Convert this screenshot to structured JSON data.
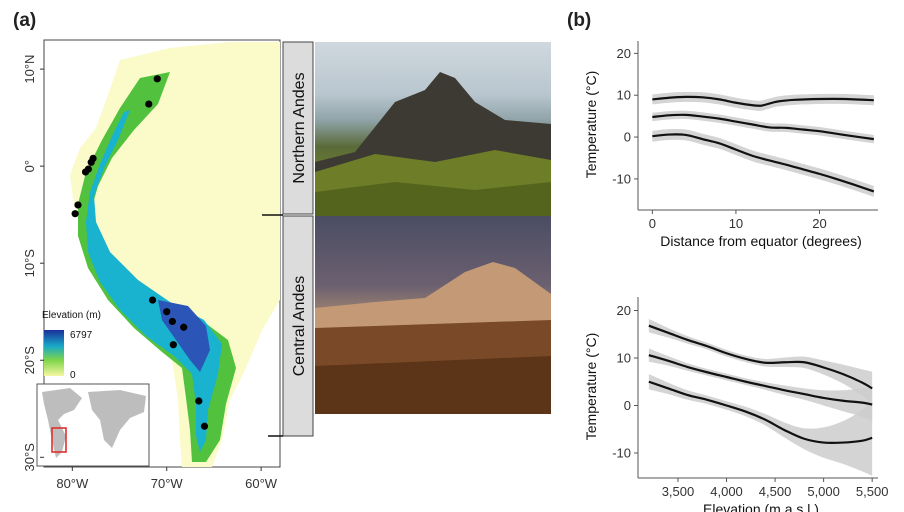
{
  "panel_a": {
    "label": "(a)",
    "map": {
      "lat_ticks": [
        "10°N",
        "0°",
        "10°S",
        "20°S",
        "30°S"
      ],
      "lon_ticks": [
        "80°W",
        "70°W",
        "60°W"
      ],
      "legend_title": "Elevation (m)",
      "legend_max": "6797",
      "legend_min": "0",
      "colors": {
        "low": "#f5f7b8",
        "mid": "#22b84a",
        "high": "#1b3fa3",
        "lowland": "#fbfbd0",
        "inset_box": "#e03030"
      },
      "sites": [
        {
          "lon": -71.0,
          "lat": 9.0
        },
        {
          "lon": -71.9,
          "lat": 6.4
        },
        {
          "lon": -77.8,
          "lat": 0.8
        },
        {
          "lon": -78.0,
          "lat": 0.4
        },
        {
          "lon": -78.3,
          "lat": -0.3
        },
        {
          "lon": -78.6,
          "lat": -0.6
        },
        {
          "lon": -79.4,
          "lat": -4.0
        },
        {
          "lon": -79.7,
          "lat": -4.9
        },
        {
          "lon": -71.5,
          "lat": -13.8
        },
        {
          "lon": -70.0,
          "lat": -15.0
        },
        {
          "lon": -69.4,
          "lat": -16.0
        },
        {
          "lon": -68.2,
          "lat": -16.6
        },
        {
          "lon": -69.3,
          "lat": -18.4
        },
        {
          "lon": -66.6,
          "lat": -24.2
        },
        {
          "lon": -66.0,
          "lat": -26.8
        }
      ]
    },
    "regions": [
      "Northern Andes",
      "Central Andes"
    ]
  },
  "panel_b": {
    "label": "(b)",
    "chart_data": [
      {
        "type": "line",
        "xlabel": "Distance from equator (degrees)",
        "ylabel": "Temperature (°C)",
        "xlim": [
          -1,
          27
        ],
        "ylim": [
          -16,
          22
        ],
        "xticks": [
          0,
          10,
          20
        ],
        "yticks": [
          -10,
          0,
          10,
          20
        ],
        "grid": false,
        "series": [
          {
            "x": [
              0,
              2,
              4,
              6,
              8,
              10,
              12,
              13,
              14,
              15,
              17,
              20,
              23,
              26.5
            ],
            "y": [
              9,
              9.4,
              9.6,
              9.5,
              9,
              8.2,
              7.6,
              7.5,
              8,
              8.5,
              8.9,
              9.1,
              9.1,
              8.8
            ],
            "band": 1.2
          },
          {
            "x": [
              0,
              2,
              4,
              6,
              8,
              10,
              12,
              14,
              16,
              18,
              20,
              22,
              24,
              26.5
            ],
            "y": [
              4.8,
              5.2,
              5.3,
              4.9,
              4.4,
              3.7,
              3,
              2.3,
              2.2,
              1.8,
              1.4,
              0.8,
              0.2,
              -0.5
            ],
            "band": 1.0
          },
          {
            "x": [
              0,
              2,
              4,
              6,
              8,
              10,
              12,
              14,
              16,
              18,
              20,
              22,
              24,
              26.5
            ],
            "y": [
              0.2,
              0.6,
              0.5,
              -0.5,
              -1.5,
              -3,
              -4.5,
              -5.6,
              -6.6,
              -7.7,
              -8.8,
              -10,
              -11.3,
              -13
            ],
            "band": 1.3
          }
        ]
      },
      {
        "type": "line",
        "xlabel": "Elevation (m a.s.l.)",
        "ylabel": "Temperature (°C)",
        "xlim": [
          3150,
          5560
        ],
        "ylim": [
          -14,
          22
        ],
        "xticks": [
          3500,
          4000,
          4500,
          5000,
          5500
        ],
        "xtick_labels": [
          "3,500",
          "4,000",
          "4,500",
          "5,000",
          "5,500"
        ],
        "yticks": [
          -10,
          0,
          10,
          20
        ],
        "grid": false,
        "series": [
          {
            "x": [
              3200,
              3400,
              3600,
              3800,
              4000,
              4200,
              4400,
              4600,
              4800,
              5000,
              5200,
              5400,
              5500
            ],
            "y": [
              16.8,
              15.3,
              13.8,
              12.5,
              11,
              9.8,
              9,
              9.1,
              9.1,
              8,
              6.6,
              4.8,
              3.6
            ],
            "band": [
              1.4,
              1.0,
              0.8,
              0.7,
              0.7,
              0.7,
              0.8,
              1.0,
              1.2,
              1.5,
              2.0,
              2.8,
              3.5
            ]
          },
          {
            "x": [
              3200,
              3400,
              3600,
              3800,
              4000,
              4200,
              4400,
              4600,
              4800,
              5000,
              5200,
              5400,
              5500
            ],
            "y": [
              10.6,
              9.4,
              8.1,
              7,
              6,
              5,
              4.1,
              3.2,
              2.4,
              1.6,
              1,
              0.6,
              0.2
            ],
            "band": [
              1.4,
              1.0,
              0.8,
              0.7,
              0.7,
              0.7,
              0.8,
              1.0,
              1.2,
              1.6,
              2.2,
              3.0,
              3.6
            ]
          },
          {
            "x": [
              3200,
              3400,
              3600,
              3800,
              4000,
              4200,
              4400,
              4600,
              4800,
              5000,
              5200,
              5400,
              5500
            ],
            "y": [
              5,
              3.6,
              2.2,
              1.2,
              0,
              -1.3,
              -3,
              -5.2,
              -7,
              -7.8,
              -7.8,
              -7.4,
              -6.8
            ],
            "band": [
              1.6,
              1.2,
              1.0,
              0.9,
              0.9,
              1.0,
              1.2,
              1.6,
              2.2,
              3.2,
              4.5,
              6.5,
              8.0
            ]
          }
        ]
      }
    ],
    "colors": {
      "line": "#111111",
      "band": "#cccccc",
      "axis": "#555555"
    }
  }
}
